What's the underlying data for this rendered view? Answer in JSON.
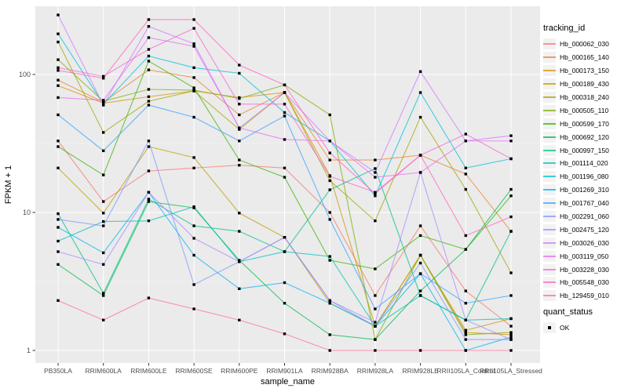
{
  "figure": {
    "y_axis_title": "FPKM + 1",
    "x_axis_title": "sample_name",
    "legend_title": "tracking_id",
    "quant_legend_title": "quant_status",
    "quant_items": [
      {
        "label": "OK"
      }
    ],
    "colors": {
      "panel_bg": "#EBEBEB",
      "grid_major": "#FFFFFF",
      "grid_minor": "#F7F7F7",
      "tick_label": "#4D4D4D",
      "tick_mark": "#333333",
      "point": "#000000",
      "legend_key_bg": "#F2F2F2",
      "page_bg": "#FFFFFF"
    }
  },
  "chart_data": {
    "type": "line",
    "title": "",
    "xlabel": "sample_name",
    "ylabel": "FPKM + 1",
    "yscale": "log10",
    "ylim": [
      1,
      300
    ],
    "y_ticks": [
      1,
      10,
      100
    ],
    "y_tick_labels": [
      "1",
      "10",
      "100"
    ],
    "y_minor_ticks": [
      3.162,
      31.62
    ],
    "grid": true,
    "legend_position": "right",
    "point_shape": "square",
    "categories": [
      "PB350LA",
      "RRIM600LA",
      "RRIM600LE",
      "RRIM600SE",
      "RRIM600PE",
      "RRIM901LA",
      "RRIM928BA",
      "RRIM928LA",
      "RRIM928LE",
      "RRII105LA_Control",
      "RRII105LA_Stressed"
    ],
    "series": [
      {
        "name": "Hb_000062_030",
        "color": "#F8766D",
        "quant_status": "OK",
        "values": [
          33,
          12,
          20,
          21,
          22,
          21,
          10,
          2.5,
          8,
          2.7,
          1.5
        ]
      },
      {
        "name": "Hb_000165_140",
        "color": "#EA8331",
        "quant_status": "OK",
        "values": [
          91,
          63,
          108,
          95,
          51,
          74,
          24,
          24,
          26,
          19,
          7.3
        ]
      },
      {
        "name": "Hb_000173_150",
        "color": "#D89000",
        "quant_status": "OK",
        "values": [
          83,
          62,
          69,
          76,
          68,
          74,
          18.5,
          1.5,
          4.9,
          1.35,
          1.3
        ]
      },
      {
        "name": "Hb_000189_430",
        "color": "#C09B00",
        "quant_status": "OK",
        "values": [
          21,
          9.9,
          30,
          25,
          9.9,
          6.6,
          2.2,
          1.5,
          4.9,
          1.4,
          1.7
        ]
      },
      {
        "name": "Hb_000318_240",
        "color": "#A3A500",
        "quant_status": "OK",
        "values": [
          172,
          38,
          64,
          76,
          40,
          74,
          17,
          8.7,
          49,
          14.7,
          3.65
        ]
      },
      {
        "name": "Hb_000505_110",
        "color": "#7CAE00",
        "quant_status": "OK",
        "values": [
          128,
          64,
          78,
          77,
          67,
          84,
          51,
          1.2,
          4.9,
          1.3,
          1.35
        ]
      },
      {
        "name": "Hb_000599_170",
        "color": "#39B600",
        "quant_status": "OK",
        "values": [
          30,
          18.7,
          125,
          80,
          24,
          18,
          4.5,
          3.9,
          6.8,
          5.4,
          13.2
        ]
      },
      {
        "name": "Hb_000692_120",
        "color": "#00BB4E",
        "quant_status": "OK",
        "values": [
          4.2,
          2.5,
          12,
          10.8,
          4.5,
          2.2,
          1.3,
          1.2,
          2.7,
          5.4,
          14.7
        ]
      },
      {
        "name": "Hb_000997_150",
        "color": "#00C087",
        "quant_status": "OK",
        "values": [
          9.8,
          2.6,
          12.5,
          8,
          7.3,
          5.2,
          14.6,
          20.8,
          2.5,
          1.66,
          7.3
        ]
      },
      {
        "name": "Hb_001114_020",
        "color": "#00C0B4",
        "quant_status": "OK",
        "values": [
          6.2,
          8.6,
          8.7,
          11,
          4.4,
          5.2,
          4.8,
          1.5,
          2.5,
          1.66,
          1.7
        ]
      },
      {
        "name": "Hb_001196_080",
        "color": "#00BFDC",
        "quant_status": "OK",
        "values": [
          197,
          61,
          136,
          112,
          102,
          53,
          33,
          13.2,
          74,
          21,
          24.5
        ]
      },
      {
        "name": "Hb_001269_310",
        "color": "#00B4F0",
        "quant_status": "OK",
        "values": [
          7.8,
          5.1,
          14,
          4.9,
          2.8,
          3.1,
          2.2,
          1.5,
          3.6,
          1.0,
          1.25
        ]
      },
      {
        "name": "Hb_001767_040",
        "color": "#35A2FF",
        "quant_status": "OK",
        "values": [
          51,
          28,
          60,
          49,
          33,
          50,
          8.9,
          2,
          3.6,
          2.2,
          2.5
        ]
      },
      {
        "name": "Hb_002291_060",
        "color": "#7997FF",
        "quant_status": "OK",
        "values": [
          8.9,
          8,
          33,
          3,
          4.4,
          6.6,
          2.3,
          1.5,
          4.3,
          1.2,
          1.2
        ]
      },
      {
        "name": "Hb_002475_120",
        "color": "#AC88FF",
        "quant_status": "OK",
        "values": [
          5.2,
          4.2,
          14,
          6.5,
          4.4,
          6.6,
          2.3,
          1.6,
          19.5,
          1.66,
          1.2
        ]
      },
      {
        "name": "Hb_003026_030",
        "color": "#CF78FF",
        "quant_status": "OK",
        "values": [
          270,
          60,
          223,
          167,
          41,
          74,
          33,
          19.5,
          105,
          33,
          36
        ]
      },
      {
        "name": "Hb_003119_050",
        "color": "#E76BF3",
        "quant_status": "OK",
        "values": [
          68,
          65,
          185,
          160,
          41,
          33.8,
          33,
          18,
          19.5,
          33,
          33
        ]
      },
      {
        "name": "Hb_003228_030",
        "color": "#F564D4",
        "quant_status": "OK",
        "values": [
          112,
          97,
          152,
          216,
          61,
          61,
          18.3,
          14,
          26,
          37,
          24.5
        ]
      },
      {
        "name": "Hb_005548_030",
        "color": "#FF62BC",
        "quant_status": "OK",
        "values": [
          107,
          94,
          250,
          250,
          117,
          84,
          27,
          13.7,
          26,
          6.8,
          9.3
        ]
      },
      {
        "name": "Hb_129459_010",
        "color": "#FF6C91",
        "quant_status": "OK",
        "values": [
          2.3,
          1.66,
          2.4,
          2,
          1.66,
          1.32,
          1,
          1,
          1,
          1,
          1
        ]
      }
    ]
  }
}
